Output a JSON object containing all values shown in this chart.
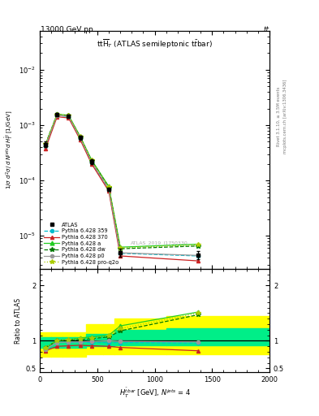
{
  "top_left_text": "13000 GeV pp",
  "top_right_text": "tt",
  "right_label_top": "Rivet 3.1.10, ≥ 3.5M events",
  "right_label_bot": "mcplots.cern.ch [arXiv:1306.3436]",
  "watermark": "ATLAS_2019_I1750330",
  "xlim": [
    0,
    2000
  ],
  "ylim_main": [
    2.5e-06,
    0.05
  ],
  "ylim_ratio": [
    0.43,
    2.3
  ],
  "x_data": [
    50,
    150,
    250,
    350,
    450,
    600,
    700,
    1375
  ],
  "atlas_y": [
    0.00045,
    0.00155,
    0.00145,
    0.0006,
    0.00022,
    7e-05,
    5e-06,
    4.5e-06
  ],
  "atlas_yerr": [
    5e-05,
    0.0001,
    0.0001,
    5e-05,
    2e-05,
    5e-06,
    8e-07,
    8e-07
  ],
  "py359_y": [
    0.00042,
    0.0015,
    0.00143,
    0.00058,
    0.00021,
    6.8e-05,
    4.8e-06,
    4.3e-06
  ],
  "py370_y": [
    0.00038,
    0.00142,
    0.00135,
    0.00055,
    0.0002,
    6.4e-05,
    4.3e-06,
    3.5e-06
  ],
  "pya_y": [
    0.00045,
    0.00158,
    0.0015,
    0.00063,
    0.000235,
    7.8e-05,
    6.2e-06,
    7e-06
  ],
  "pydw_y": [
    0.00046,
    0.00155,
    0.00148,
    0.00061,
    0.000228,
    7.5e-05,
    5.8e-06,
    6.5e-06
  ],
  "pyp0_y": [
    0.00043,
    0.00152,
    0.00144,
    0.00059,
    0.000218,
    7e-05,
    4.9e-06,
    4.4e-06
  ],
  "pyproq2o_y": [
    0.00046,
    0.00157,
    0.0015,
    0.00062,
    0.00023,
    7.6e-05,
    6e-06,
    6.8e-06
  ],
  "ratio_py359": [
    0.84,
    0.97,
    0.97,
    0.97,
    0.97,
    0.97,
    0.97,
    0.96
  ],
  "ratio_py370": [
    0.82,
    0.9,
    0.91,
    0.92,
    0.91,
    0.9,
    0.88,
    0.82
  ],
  "ratio_pya": [
    0.87,
    1.01,
    1.02,
    1.05,
    1.07,
    1.1,
    1.27,
    1.52
  ],
  "ratio_pydw": [
    0.88,
    1.0,
    1.01,
    1.02,
    1.04,
    1.07,
    1.18,
    1.47
  ],
  "ratio_pyp0": [
    0.85,
    0.97,
    0.98,
    0.98,
    0.99,
    1.0,
    0.99,
    0.98
  ],
  "ratio_pyproq2o": [
    0.88,
    1.01,
    1.02,
    1.04,
    1.05,
    1.09,
    1.22,
    1.5
  ],
  "band_yellow_lo": [
    0.72,
    0.72,
    0.72,
    0.72,
    0.75,
    0.75,
    0.75,
    0.75
  ],
  "band_yellow_hi": [
    1.15,
    1.15,
    1.15,
    1.15,
    1.3,
    1.3,
    1.4,
    1.45
  ],
  "band_green_lo": [
    0.88,
    0.88,
    0.88,
    0.88,
    0.9,
    0.9,
    0.92,
    0.92
  ],
  "band_green_hi": [
    1.07,
    1.07,
    1.07,
    1.07,
    1.12,
    1.12,
    1.2,
    1.22
  ],
  "color_atlas": "#000000",
  "color_py359": "#00bbcc",
  "color_py370": "#cc2222",
  "color_pya": "#22cc22",
  "color_pydw": "#007700",
  "color_pyp0": "#999999",
  "color_pyproq2o": "#aacc00",
  "color_yellow": "#ffff00",
  "color_green": "#00ee88"
}
